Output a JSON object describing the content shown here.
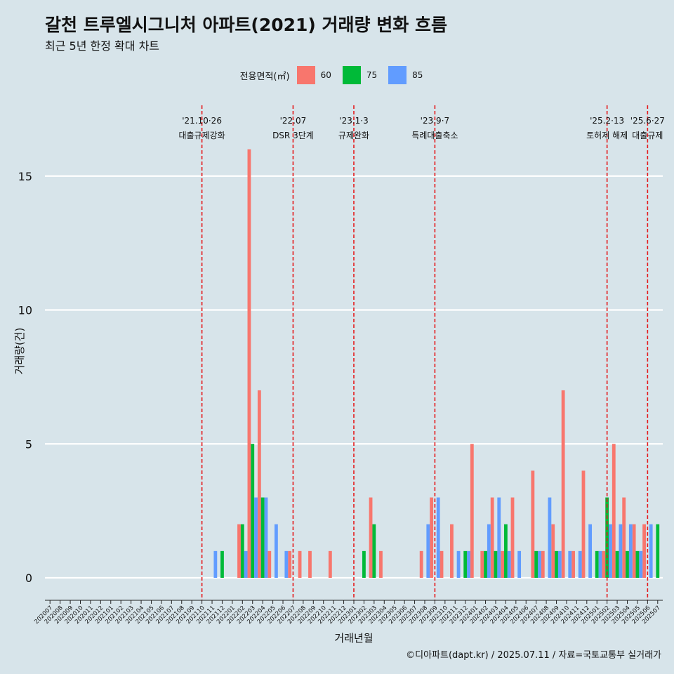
{
  "title": "갈천 트루엘시그니처 아파트(2021) 거래량 변화 흐름",
  "subtitle": "최근 5년 한정 확대 차트",
  "legend_title": "전용면적(㎡)",
  "credit": "©디아파트(dapt.kr) / 2025.07.11 / 자료=국토교통부 실거래가",
  "colors": {
    "background": "#d7e4ea",
    "60": "#f8766d",
    "75": "#00ba38",
    "85": "#619cff",
    "event_line": "#e41a1c"
  },
  "chart_data": {
    "type": "bar",
    "xlabel": "거래년월",
    "ylabel": "거래량(건)",
    "ylim": [
      -1.5,
      18
    ],
    "yticks": [
      0,
      5,
      10,
      15
    ],
    "grid": true,
    "legend_position": "top",
    "categories": [
      "202007",
      "202008",
      "202009",
      "202010",
      "202011",
      "202012",
      "202101",
      "202102",
      "202103",
      "202104",
      "202105",
      "202106",
      "202107",
      "202108",
      "202109",
      "202110",
      "202111",
      "202112",
      "202201",
      "202202",
      "202203",
      "202204",
      "202205",
      "202206",
      "202207",
      "202208",
      "202209",
      "202210",
      "202211",
      "202212",
      "202301",
      "202302",
      "202303",
      "202304",
      "202305",
      "202306",
      "202307",
      "202308",
      "202309",
      "202310",
      "202311",
      "202312",
      "202401",
      "202402",
      "202403",
      "202404",
      "202405",
      "202406",
      "202407",
      "202408",
      "202409",
      "202410",
      "202411",
      "202412",
      "202501",
      "202502",
      "202503",
      "202504",
      "202505",
      "202506",
      "202507"
    ],
    "series": [
      {
        "name": "60",
        "color": "#f8766d",
        "values": [
          0,
          0,
          0,
          0,
          0,
          0,
          0,
          0,
          0,
          0,
          0,
          0,
          0,
          0,
          0,
          0,
          0,
          0,
          0,
          2,
          16,
          7,
          1,
          0,
          1,
          1,
          1,
          0,
          1,
          0,
          0,
          0,
          3,
          1,
          0,
          0,
          0,
          1,
          3,
          1,
          2,
          0,
          5,
          1,
          3,
          1,
          3,
          0,
          4,
          1,
          2,
          7,
          1,
          4,
          0,
          1,
          5,
          3,
          2,
          2,
          0
        ]
      },
      {
        "name": "75",
        "color": "#00ba38",
        "values": [
          0,
          0,
          0,
          0,
          0,
          0,
          0,
          0,
          0,
          0,
          0,
          0,
          0,
          0,
          0,
          0,
          0,
          1,
          0,
          2,
          5,
          3,
          0,
          0,
          0,
          0,
          0,
          0,
          0,
          0,
          0,
          1,
          2,
          0,
          0,
          0,
          0,
          0,
          0,
          0,
          0,
          1,
          0,
          1,
          1,
          2,
          0,
          0,
          1,
          0,
          1,
          0,
          0,
          0,
          1,
          3,
          1,
          1,
          1,
          0,
          2
        ]
      },
      {
        "name": "85",
        "color": "#619cff",
        "values": [
          0,
          0,
          0,
          0,
          0,
          0,
          0,
          0,
          0,
          0,
          0,
          0,
          0,
          0,
          0,
          0,
          1,
          0,
          0,
          1,
          3,
          3,
          2,
          1,
          0,
          0,
          0,
          0,
          0,
          0,
          0,
          0,
          0,
          0,
          0,
          0,
          0,
          2,
          3,
          0,
          1,
          1,
          0,
          2,
          3,
          1,
          1,
          0,
          1,
          3,
          1,
          1,
          1,
          2,
          1,
          2,
          2,
          2,
          1,
          2,
          0
        ]
      }
    ],
    "annotations": [
      {
        "category": "202110",
        "date": "'21.10·26",
        "label": "대출규제강화"
      },
      {
        "category": "202207",
        "date": "'22.07",
        "label": "DSR 3단계"
      },
      {
        "category": "202301",
        "date": "'23.1·3",
        "label": "규제완화"
      },
      {
        "category": "202309",
        "date": "'23.9·7",
        "label": "특례대출축소"
      },
      {
        "category": "202502",
        "date": "'25.2·13",
        "label": "토허제 해제"
      },
      {
        "category": "202506",
        "date": "'25.6·27",
        "label": "대출규제"
      }
    ]
  }
}
